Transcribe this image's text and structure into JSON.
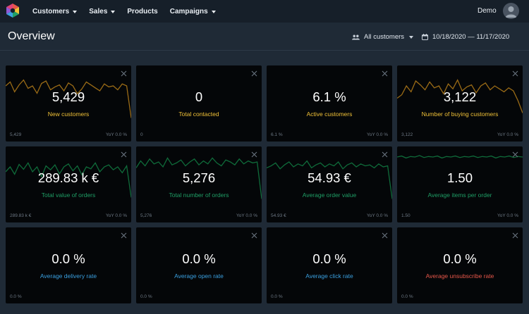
{
  "nav": {
    "items": [
      {
        "label": "Customers",
        "dropdown": true
      },
      {
        "label": "Sales",
        "dropdown": true
      },
      {
        "label": "Products",
        "dropdown": false
      },
      {
        "label": "Campaigns",
        "dropdown": true
      }
    ],
    "user": "Demo"
  },
  "header": {
    "title": "Overview",
    "audience_filter": "All customers",
    "date_range": "10/18/2020 — 11/17/2020"
  },
  "colors": {
    "yellow": "#f0c137",
    "green": "#1f9f66",
    "blue": "#3aa0e0",
    "red": "#e8574a",
    "spark_yellow": "#9a6b16",
    "spark_green": "#0f6b3a"
  },
  "cards": [
    {
      "value": "5,429",
      "label": "New customers",
      "label_color": "yellow",
      "foot_left": "5,429",
      "foot_right": "YoY 0.0 %",
      "spark": "yellow-a"
    },
    {
      "value": "0",
      "label": "Total contacted",
      "label_color": "yellow",
      "foot_left": "0",
      "foot_right": "",
      "spark": ""
    },
    {
      "value": "6.1 %",
      "label": "Active customers",
      "label_color": "yellow",
      "foot_left": "6.1 %",
      "foot_right": "YoY 0.0 %",
      "spark": ""
    },
    {
      "value": "3,122",
      "label": "Number of buying customers",
      "label_color": "yellow",
      "foot_left": "3,122",
      "foot_right": "YoY 0.0 %",
      "spark": "yellow-b"
    },
    {
      "value": "289.83 k €",
      "label": "Total value of orders",
      "label_color": "green",
      "foot_left": "289.83 k €",
      "foot_right": "YoY 0.0 %",
      "spark": "green-a"
    },
    {
      "value": "5,276",
      "label": "Total number of orders",
      "label_color": "green",
      "foot_left": "5,276",
      "foot_right": "YoY 0.0 %",
      "spark": "green-b"
    },
    {
      "value": "54.93 €",
      "label": "Average order value",
      "label_color": "green",
      "foot_left": "54.93 €",
      "foot_right": "YoY 0.0 %",
      "spark": "green-c"
    },
    {
      "value": "1.50",
      "label": "Average items per order",
      "label_color": "green",
      "foot_left": "1.50",
      "foot_right": "YoY 0.0 %",
      "spark": "green-d"
    },
    {
      "value": "0.0 %",
      "label": "Average delivery rate",
      "label_color": "blue",
      "foot_left": "0.0 %",
      "foot_right": "",
      "spark": ""
    },
    {
      "value": "0.0 %",
      "label": "Average open rate",
      "label_color": "blue",
      "foot_left": "0.0 %",
      "foot_right": "",
      "spark": ""
    },
    {
      "value": "0.0 %",
      "label": "Average click rate",
      "label_color": "blue",
      "foot_left": "0.0 %",
      "foot_right": "",
      "spark": ""
    },
    {
      "value": "0.0 %",
      "label": "Average unsubscribe rate",
      "label_color": "red",
      "foot_left": "0.0 %",
      "foot_right": "",
      "spark": ""
    }
  ]
}
